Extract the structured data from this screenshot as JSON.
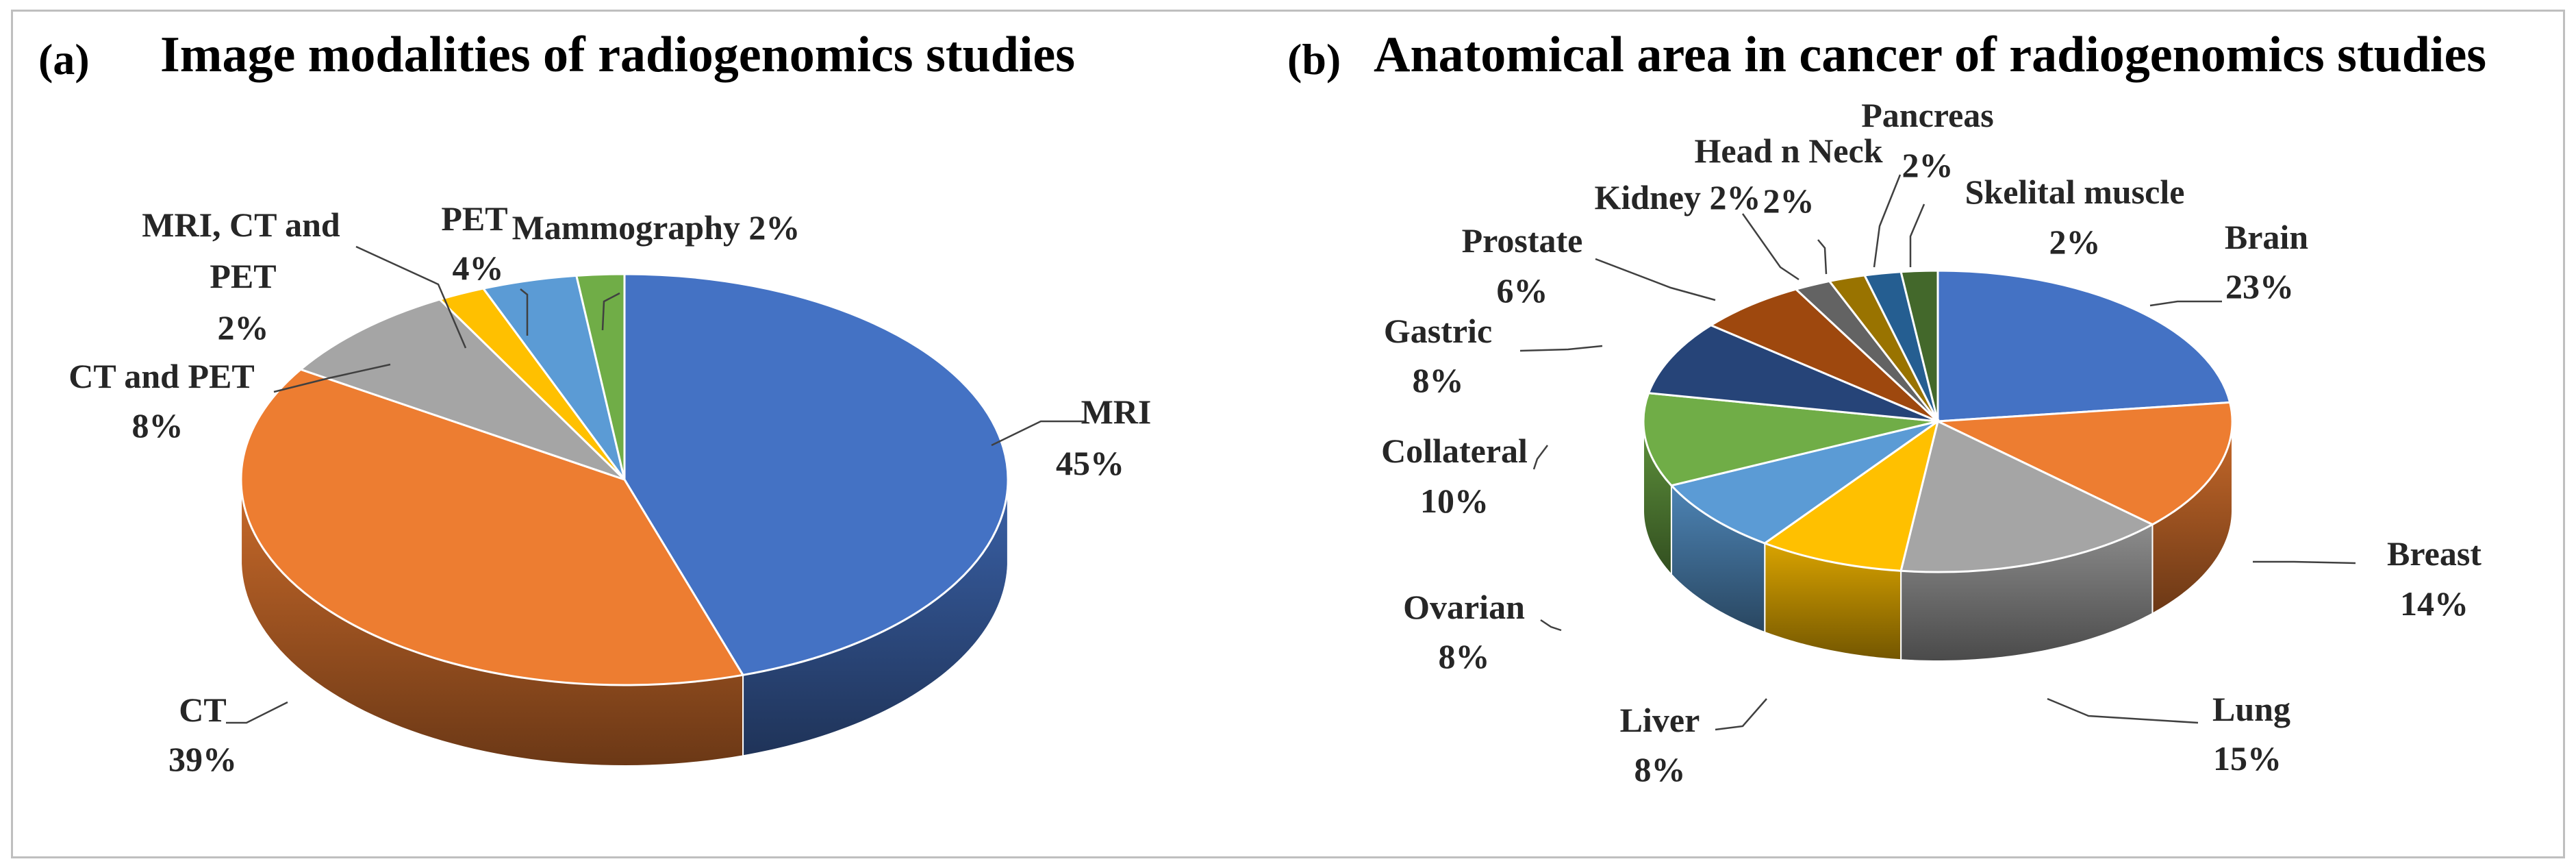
{
  "chart_data": [
    {
      "type": "pie",
      "panel": "(a)",
      "title": "Image modalities of radiogenomics studies",
      "slices": [
        {
          "label": "MRI",
          "value": 45,
          "value_text": "45%",
          "color": "#4472c4"
        },
        {
          "label": "CT",
          "value": 39,
          "value_text": "39%",
          "color": "#ed7d31"
        },
        {
          "label": "CT and PET",
          "value": 8,
          "value_text": "8%",
          "color": "#a5a5a5"
        },
        {
          "label": "MRI, CT and PET",
          "value": 2,
          "value_text": "2%",
          "color": "#ffc000"
        },
        {
          "label": "PET",
          "value": 4,
          "value_text": "4%",
          "color": "#5b9bd5"
        },
        {
          "label": "Mammography",
          "value": 2,
          "value_text": "2%",
          "color": "#70ad47"
        }
      ]
    },
    {
      "type": "pie",
      "panel": "(b)",
      "title": "Anatomical area in cancer of radiogenomics studies",
      "slices": [
        {
          "label": "Brain",
          "value": 23,
          "value_text": "23%",
          "color": "#4472c4"
        },
        {
          "label": "Breast",
          "value": 14,
          "value_text": "14%",
          "color": "#ed7d31"
        },
        {
          "label": "Lung",
          "value": 15,
          "value_text": "15%",
          "color": "#a5a5a5"
        },
        {
          "label": "Liver",
          "value": 8,
          "value_text": "8%",
          "color": "#ffc000"
        },
        {
          "label": "Ovarian",
          "value": 8,
          "value_text": "8%",
          "color": "#5b9bd5"
        },
        {
          "label": "Collateral",
          "value": 10,
          "value_text": "10%",
          "color": "#70ad47"
        },
        {
          "label": "Gastric",
          "value": 8,
          "value_text": "8%",
          "color": "#264478"
        },
        {
          "label": "Prostate",
          "value": 6,
          "value_text": "6%",
          "color": "#9e480e"
        },
        {
          "label": "Kidney",
          "value": 2,
          "value_text": "2%",
          "color": "#636363"
        },
        {
          "label": "Head n Neck",
          "value": 2,
          "value_text": "2%",
          "color": "#997300"
        },
        {
          "label": "Pancreas",
          "value": 2,
          "value_text": "2%",
          "color": "#255e91"
        },
        {
          "label": "Skelital muscle",
          "value": 2,
          "value_text": "2%",
          "color": "#43682b"
        }
      ]
    }
  ]
}
